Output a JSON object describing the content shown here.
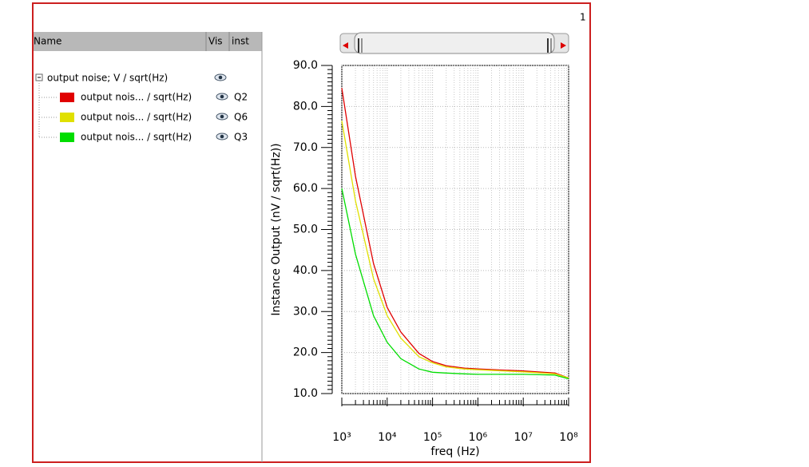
{
  "page_number": "1",
  "columns": [
    "Name",
    "Vis",
    "inst"
  ],
  "chart_data": {
    "type": "line",
    "legend_title": "output noise; V / sqrt(Hz)",
    "xlabel": "freq (Hz)",
    "ylabel": "Instance Output (nV / sqrt(Hz))",
    "xscale": "log",
    "grid": true,
    "x": [
      1000,
      2000,
      5000,
      10000,
      20000,
      50000,
      100000,
      200000,
      500000,
      1000000,
      10000000,
      50000000,
      100000000
    ],
    "series": [
      {
        "name": "output nois... / sqrt(Hz)",
        "inst": "Q2",
        "color": "#e00000",
        "values": [
          84.5,
          63,
          41.7,
          31,
          25,
          19.8,
          17.8,
          16.8,
          16.2,
          16,
          15.5,
          15,
          13.8
        ]
      },
      {
        "name": "output nois... / sqrt(Hz)",
        "inst": "Q6",
        "color": "#e0e000",
        "values": [
          76.5,
          57,
          38,
          29,
          23.5,
          19,
          17.5,
          16.5,
          16,
          15.8,
          15.3,
          14.8,
          13.8
        ]
      },
      {
        "name": "output nois... / sqrt(Hz)",
        "inst": "Q3",
        "color": "#00dd00",
        "values": [
          60,
          44,
          29,
          22.5,
          18.5,
          16,
          15.2,
          15,
          14.8,
          14.7,
          14.7,
          14.5,
          13.6
        ]
      }
    ],
    "xlim": [
      1000,
      100000000
    ],
    "xticks": [
      {
        "value": 1000,
        "label": "10³"
      },
      {
        "value": 10000,
        "label": "10⁴"
      },
      {
        "value": 100000,
        "label": "10⁵"
      },
      {
        "value": 1000000,
        "label": "10⁶"
      },
      {
        "value": 10000000,
        "label": "10⁷"
      },
      {
        "value": 100000000,
        "label": "10⁸"
      }
    ],
    "ylim": [
      10,
      90
    ],
    "yticks": [
      {
        "value": 10,
        "label": "10.0"
      },
      {
        "value": 20,
        "label": "20.0"
      },
      {
        "value": 30,
        "label": "30.0"
      },
      {
        "value": 40,
        "label": "40.0"
      },
      {
        "value": 50,
        "label": "50.0"
      },
      {
        "value": 60,
        "label": "60.0"
      },
      {
        "value": 70,
        "label": "70.0"
      },
      {
        "value": 80,
        "label": "80.0"
      },
      {
        "value": 90,
        "label": "90.0"
      }
    ]
  }
}
